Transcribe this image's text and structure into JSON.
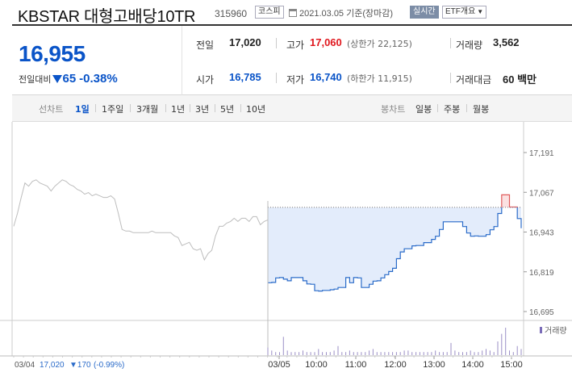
{
  "header": {
    "name": "KBSTAR 대형고배당10TR",
    "code": "315960",
    "market": "코스피",
    "date": "2021.03.05",
    "date_note": "기준(장마감)",
    "realtime": "실시간",
    "etf": "ETF개요"
  },
  "price": {
    "current": "16,955",
    "change_label": "전일대비",
    "change": "65",
    "change_pct": "-0.38%"
  },
  "stats": {
    "prev_label": "전일",
    "prev": "17,020",
    "high_label": "고가",
    "high": "17,060",
    "upper_limit": "(상한가 22,125)",
    "volume_label": "거래량",
    "volume": "3,562",
    "open_label": "시가",
    "open": "16,785",
    "low_label": "저가",
    "low": "16,740",
    "lower_limit": "(하한가 11,915)",
    "amount_label": "거래대금",
    "amount": "60 백만"
  },
  "tabs": {
    "line_label": "선차트",
    "line_items": [
      "1일",
      "1주일",
      "3개월",
      "1년",
      "3년",
      "5년",
      "10년"
    ],
    "candle_label": "봉차트",
    "candle_items": [
      "일봉",
      "주봉",
      "월봉"
    ]
  },
  "chart_data": {
    "type": "line",
    "y_ticks": [
      "17,191",
      "17,067",
      "16,943",
      "16,819",
      "16,695"
    ],
    "y_tick_values": [
      17191,
      17067,
      16943,
      16819,
      16695
    ],
    "ylim": [
      16695,
      17191
    ],
    "x_labels": [
      "03/05",
      "10:00",
      "11:00",
      "12:00",
      "13:00",
      "14:00",
      "15:00"
    ],
    "volume_legend": "거래량",
    "prev_day": {
      "date": "03/04",
      "close": "17,020",
      "change": "▼170",
      "change_pct": "(-0.99%)",
      "values": [
        16961,
        17001,
        17051,
        17096,
        17086,
        17101,
        17106,
        17096,
        17091,
        17086,
        17071,
        17086,
        17096,
        17106,
        17101,
        17091,
        17086,
        17076,
        17071,
        17061,
        17066,
        17056,
        17061,
        17056,
        17051,
        17051,
        17056,
        17046,
        17001,
        16951,
        16946,
        16946,
        16941,
        16941,
        16941,
        16941,
        16941,
        16946,
        16941,
        16941,
        16941,
        16941,
        16941,
        16931,
        16926,
        16901,
        16906,
        16911,
        16891,
        16886,
        16891,
        16856,
        16876,
        16886,
        16931,
        16961,
        16961,
        16971,
        16976,
        16986,
        16976,
        16986,
        16986,
        16976,
        16991,
        16991,
        16966,
        16976,
        16981
      ]
    },
    "today": {
      "date": "03/05",
      "previous_close": 17020,
      "values": [
        16785,
        16786,
        16800,
        16801,
        16796,
        16791,
        16801,
        16801,
        16801,
        16791,
        16781,
        16780,
        16760,
        16759,
        16761,
        16761,
        16763,
        16765,
        16770,
        16770,
        16801,
        16785,
        16801,
        16800,
        16770,
        16770,
        16780,
        16790,
        16791,
        16800,
        16810,
        16820,
        16830,
        16860,
        16881,
        16891,
        16891,
        16900,
        16901,
        16901,
        16910,
        16910,
        16920,
        16930,
        16951,
        16975,
        16975,
        16975,
        16975,
        16975,
        16960,
        16940,
        16930,
        16931,
        16930,
        16930,
        16935,
        16950,
        16960,
        17001,
        17059,
        17059,
        17021,
        17021,
        16985,
        16955
      ]
    },
    "volume": [
      5,
      3,
      2,
      2,
      12,
      3,
      2,
      2,
      2,
      3,
      2,
      2,
      2,
      4,
      2,
      2,
      2,
      3,
      6,
      2,
      2,
      3,
      2,
      2,
      2,
      2,
      3,
      4,
      2,
      2,
      2,
      2,
      2,
      2,
      2,
      3,
      3,
      2,
      2,
      2,
      2,
      2,
      2,
      3,
      2,
      2,
      2,
      8,
      3,
      2,
      2,
      2,
      3,
      2,
      2,
      3,
      4,
      3,
      2,
      9,
      14,
      18,
      3,
      2,
      6,
      4
    ]
  }
}
